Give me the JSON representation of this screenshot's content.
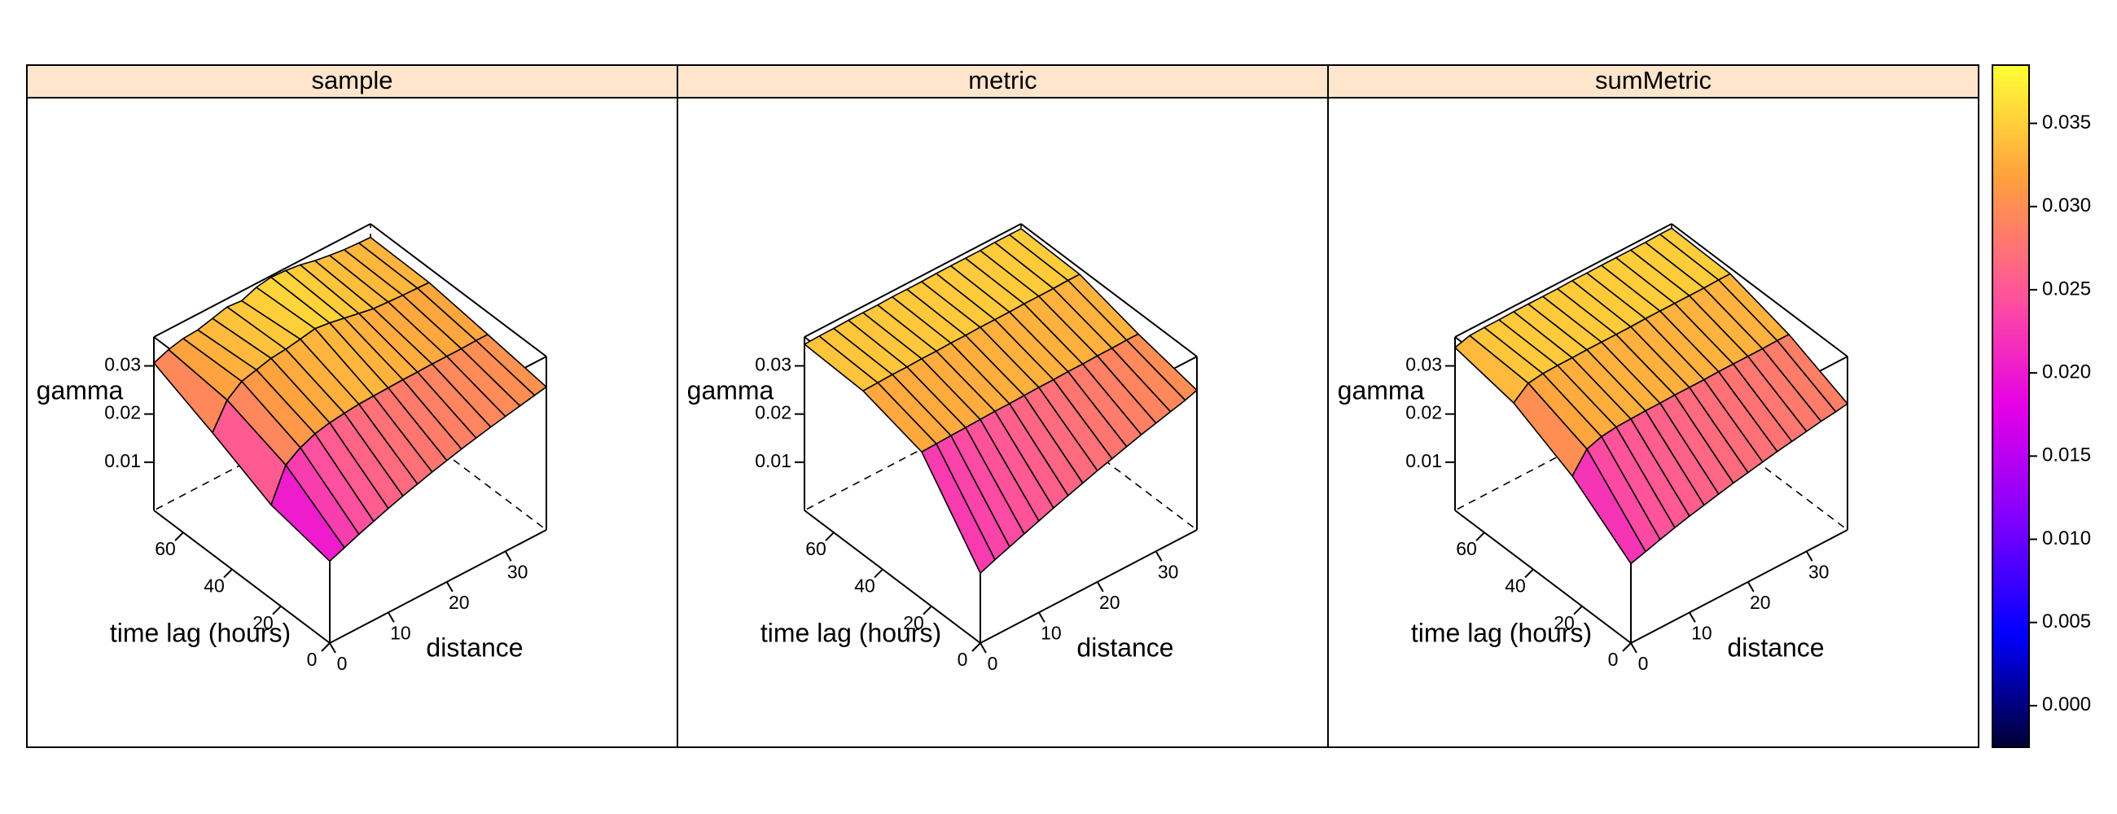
{
  "chart_data": [
    {
      "type": "surface",
      "panel": "sample",
      "zlabel": "gamma",
      "ylabel": "time lag (hours)",
      "xlabel": "distance",
      "x_ticks": [
        0,
        10,
        20,
        30
      ],
      "y_ticks": [
        0,
        20,
        40,
        60
      ],
      "z_ticks": [
        0.01,
        0.02,
        0.03
      ],
      "z_tick_labels": [
        "0.01",
        "0.02",
        "0.03"
      ],
      "x_tick_labels": [
        "0",
        "10",
        "20",
        "30"
      ],
      "y_tick_labels": [
        "0",
        "20",
        "40",
        "60"
      ],
      "xlim": [
        0,
        37
      ],
      "ylim": [
        0,
        72
      ],
      "zlim": [
        0,
        0.036
      ],
      "distance": [
        0,
        2.5,
        5,
        7.5,
        10,
        12.5,
        15,
        17.5,
        20,
        22.5,
        25,
        27.5,
        30,
        32.5,
        35,
        37
      ],
      "timelag": [
        0,
        24,
        48,
        72
      ],
      "gamma": [
        [
          0.017,
          0.0182,
          0.0194,
          0.0205,
          0.0216,
          0.0226,
          0.0235,
          0.0244,
          0.0252,
          0.026,
          0.0267,
          0.0274,
          0.028,
          0.0286,
          0.0292,
          0.0297
        ],
        [
          0.0195,
          0.0262,
          0.0282,
          0.0295,
          0.0302,
          0.0306,
          0.0309,
          0.031,
          0.0311,
          0.0312,
          0.0312,
          0.0313,
          0.0313,
          0.0313,
          0.0314,
          0.0314
        ],
        [
          0.0253,
          0.0305,
          0.0328,
          0.0336,
          0.0344,
          0.0347,
          0.0352,
          0.0358,
          0.0354,
          0.0348,
          0.0342,
          0.0336,
          0.0334,
          0.0332,
          0.0331,
          0.033
        ],
        [
          0.0306,
          0.0318,
          0.0325,
          0.0327,
          0.0335,
          0.0343,
          0.034,
          0.0352,
          0.0357,
          0.0355,
          0.0351,
          0.0344,
          0.0339,
          0.0335,
          0.0333,
          0.0332
        ]
      ]
    },
    {
      "type": "surface",
      "panel": "metric",
      "zlabel": "gamma",
      "ylabel": "time lag (hours)",
      "xlabel": "distance",
      "x_ticks": [
        0,
        10,
        20,
        30
      ],
      "y_ticks": [
        0,
        20,
        40,
        60
      ],
      "z_ticks": [
        0.01,
        0.02,
        0.03
      ],
      "z_tick_labels": [
        "0.01",
        "0.02",
        "0.03"
      ],
      "x_tick_labels": [
        "0",
        "10",
        "20",
        "30"
      ],
      "y_tick_labels": [
        "0",
        "20",
        "40",
        "60"
      ],
      "xlim": [
        0,
        37
      ],
      "ylim": [
        0,
        72
      ],
      "zlim": [
        0,
        0.036
      ],
      "distance": [
        0,
        2.5,
        5,
        7.5,
        10,
        12.5,
        15,
        17.5,
        20,
        22.5,
        25,
        27.5,
        30,
        32.5,
        35,
        37
      ],
      "timelag": [
        0,
        24,
        48,
        72
      ],
      "gamma": [
        [
          0.0145,
          0.0157,
          0.0168,
          0.0179,
          0.019,
          0.0201,
          0.0211,
          0.0221,
          0.0231,
          0.024,
          0.0249,
          0.0258,
          0.0266,
          0.0274,
          0.0282,
          0.029
        ],
        [
          0.0305,
          0.0306,
          0.0307,
          0.0308,
          0.0309,
          0.031,
          0.031,
          0.0311,
          0.0312,
          0.0312,
          0.0313,
          0.0313,
          0.0314,
          0.0314,
          0.0315,
          0.0315
        ],
        [
          0.034,
          0.0341,
          0.0342,
          0.0342,
          0.0343,
          0.0343,
          0.0344,
          0.0344,
          0.0345,
          0.0345,
          0.0345,
          0.0346,
          0.0346,
          0.0346,
          0.0347,
          0.0347
        ],
        [
          0.0345,
          0.0346,
          0.0346,
          0.0347,
          0.0347,
          0.0347,
          0.0348,
          0.0348,
          0.0348,
          0.0349,
          0.0349,
          0.0349,
          0.0349,
          0.035,
          0.035,
          0.035
        ]
      ]
    },
    {
      "type": "surface",
      "panel": "sumMetric",
      "zlabel": "gamma",
      "ylabel": "time lag (hours)",
      "xlabel": "distance",
      "x_ticks": [
        0,
        10,
        20,
        30
      ],
      "y_ticks": [
        0,
        20,
        40,
        60
      ],
      "z_ticks": [
        0.01,
        0.02,
        0.03
      ],
      "z_tick_labels": [
        "0.01",
        "0.02",
        "0.03"
      ],
      "x_tick_labels": [
        "0",
        "10",
        "20",
        "30"
      ],
      "y_tick_labels": [
        "0",
        "20",
        "40",
        "60"
      ],
      "xlim": [
        0,
        37
      ],
      "ylim": [
        0,
        72
      ],
      "zlim": [
        0,
        0.036
      ],
      "distance": [
        0,
        2.5,
        5,
        7.5,
        10,
        12.5,
        15,
        17.5,
        20,
        22.5,
        25,
        27.5,
        30,
        32.5,
        35,
        37
      ],
      "timelag": [
        0,
        24,
        48,
        72
      ],
      "gamma": [
        [
          0.0165,
          0.0174,
          0.0183,
          0.0192,
          0.02,
          0.0207,
          0.0214,
          0.0221,
          0.0227,
          0.0233,
          0.0239,
          0.0244,
          0.0249,
          0.0254,
          0.0258,
          0.0262
        ],
        [
          0.0255,
          0.0295,
          0.0305,
          0.0309,
          0.031,
          0.0311,
          0.0311,
          0.0312,
          0.0312,
          0.0312,
          0.0313,
          0.0313,
          0.0313,
          0.0313,
          0.0314,
          0.0314
        ],
        [
          0.0315,
          0.034,
          0.0344,
          0.0345,
          0.0345,
          0.0346,
          0.0346,
          0.0346,
          0.0346,
          0.0347,
          0.0347,
          0.0347,
          0.0347,
          0.0347,
          0.0348,
          0.0348
        ],
        [
          0.0338,
          0.0347,
          0.0348,
          0.0348,
          0.0349,
          0.0349,
          0.0349,
          0.0349,
          0.035,
          0.035,
          0.035,
          0.035,
          0.035,
          0.035,
          0.0351,
          0.0351
        ]
      ]
    }
  ],
  "colorkey": {
    "range": [
      -0.0025,
      0.0385
    ],
    "ticks": [
      0.0,
      0.005,
      0.01,
      0.015,
      0.02,
      0.025,
      0.03,
      0.035
    ],
    "tick_labels": [
      "0.000",
      "0.005",
      "0.010",
      "0.015",
      "0.020",
      "0.025",
      "0.030",
      "0.035"
    ],
    "palette": [
      "#000033",
      "#0000FF",
      "#8000FF",
      "#E600E6",
      "#FF5599",
      "#FF9F3F",
      "#FFFF35"
    ]
  },
  "strip_color": "#FFE5CC"
}
